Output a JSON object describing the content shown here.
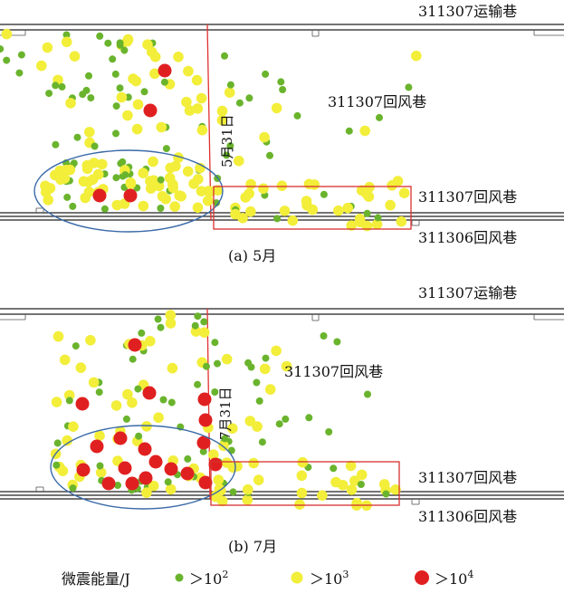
{
  "panels": [
    {
      "caption": "(a)  5月",
      "labels": {
        "transport_top": "311307运输巷",
        "return_mid": "311307回风巷",
        "return_right": "311307回风巷",
        "return_bottom": "311306回风巷",
        "date": "5月31日"
      }
    },
    {
      "caption": "(b)  7月",
      "labels": {
        "transport_top": "311307运输巷",
        "return_mid": "311307回风巷",
        "return_right": "311307回风巷",
        "return_bottom": "311306回风巷",
        "date": "7月31日"
      }
    }
  ],
  "legend": {
    "title": "微震能量/J",
    "items": [
      {
        "label": "＞10",
        "sup": "2",
        "color": "#6ab42d"
      },
      {
        "label": "＞10",
        "sup": "3",
        "color": "#f2ee3a"
      },
      {
        "label": "＞10",
        "sup": "4",
        "color": "#e02020"
      }
    ]
  },
  "colors": {
    "green": "#6ab42d",
    "yellow": "#f2ee3a",
    "red": "#e02020",
    "face_line": "#e03030",
    "ellipse": "#3a6aa8",
    "box": "#d83030"
  }
}
